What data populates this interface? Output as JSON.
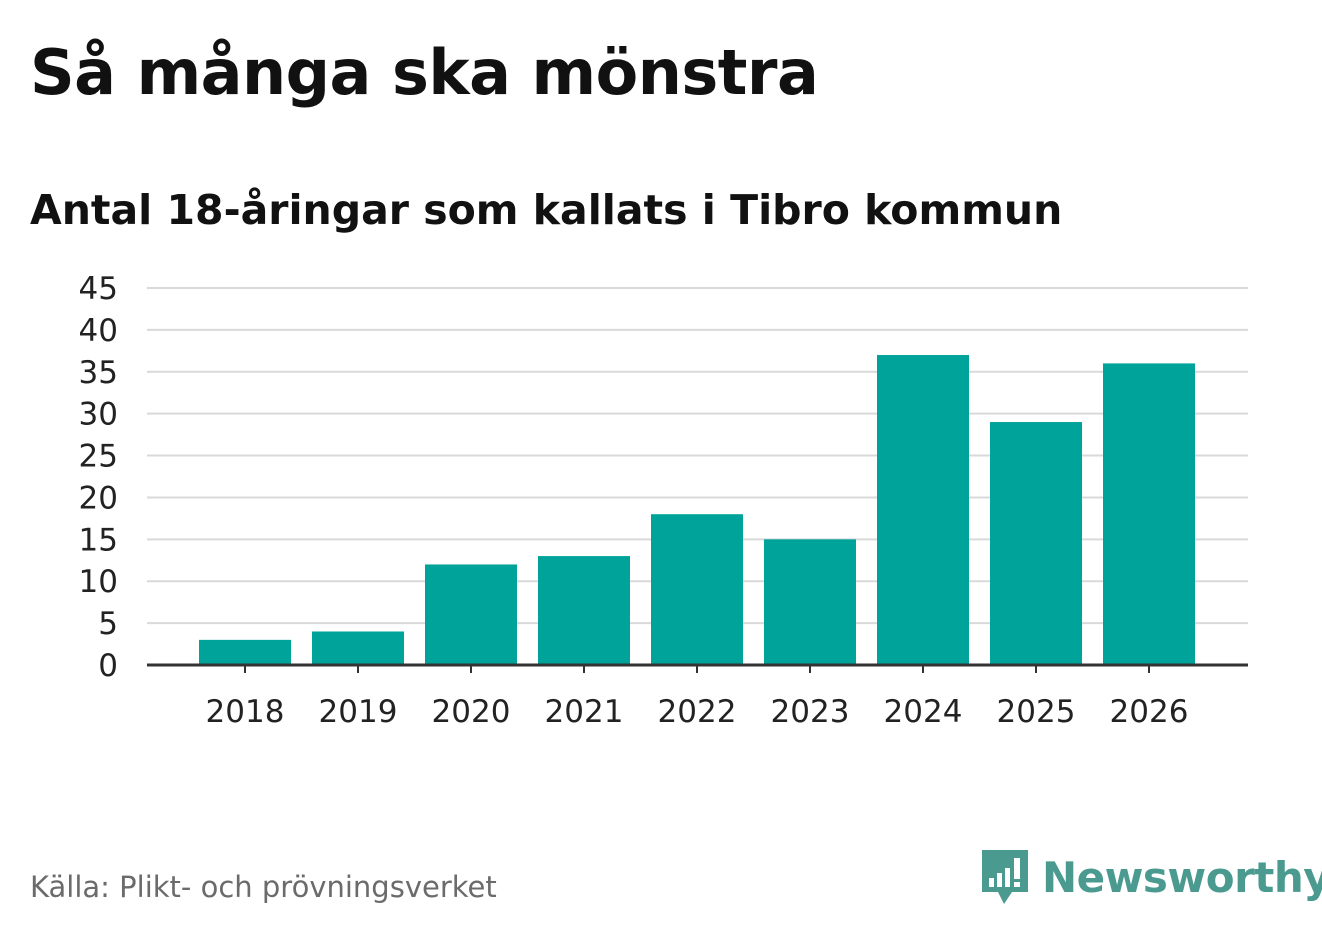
{
  "chart_data": {
    "type": "bar",
    "title": "Så många ska mönstra",
    "subtitle": "Antal 18-åringar som kallats i Tibro kommun",
    "categories": [
      "2018",
      "2019",
      "2020",
      "2021",
      "2022",
      "2023",
      "2024",
      "2025",
      "2026"
    ],
    "values": [
      3,
      4,
      12,
      13,
      18,
      15,
      37,
      29,
      36
    ],
    "xlabel": "",
    "ylabel": "",
    "ylim": [
      0,
      45
    ],
    "yticks": [
      "0",
      "5",
      "10",
      "15",
      "20",
      "25",
      "30",
      "35",
      "40",
      "45"
    ],
    "grid": true,
    "bar_color": "#00a39a"
  },
  "footer": {
    "source": "Källa: Plikt- och prövningsverket",
    "brand": "Newsworthy",
    "brand_icon": "newsworthy-logo-icon"
  },
  "colors": {
    "bar": "#00a39a",
    "grid": "#d9d9d9",
    "axis": "#333333",
    "brand": "#4a9a90",
    "source": "#6b6b6b"
  }
}
